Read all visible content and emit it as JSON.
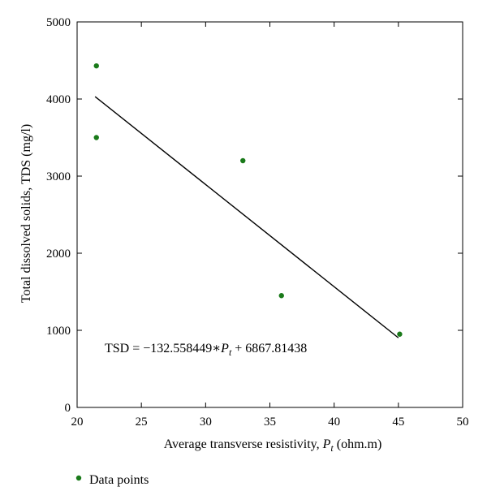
{
  "chart_data": {
    "type": "scatter",
    "xlabel": "Average transverse resistivity, ",
    "xlabel_var": "P",
    "xlabel_sub": "t",
    "xlabel_unit": " (ohm.m)",
    "ylabel": "Total dissolved solids, TDS (mg/l)",
    "xlim": [
      20,
      50
    ],
    "ylim": [
      0,
      5000
    ],
    "x_ticks": [
      20,
      25,
      30,
      35,
      40,
      45,
      50
    ],
    "y_ticks": [
      0,
      1000,
      2000,
      3000,
      4000,
      5000
    ],
    "series": [
      {
        "name": "Data points",
        "color": "#1a7a1a",
        "points": [
          {
            "x": 21.5,
            "y": 4430
          },
          {
            "x": 21.5,
            "y": 3500
          },
          {
            "x": 32.9,
            "y": 3200
          },
          {
            "x": 35.9,
            "y": 1450
          },
          {
            "x": 45.1,
            "y": 950
          }
        ]
      }
    ],
    "fit_line": {
      "slope": -132.558449,
      "intercept": 6867.81438,
      "x_start": 21.4,
      "x_end": 45.0,
      "color": "#000000"
    },
    "equation": {
      "prefix": "TSD = −132.558449∗",
      "var": "P",
      "sub": "t",
      "suffix": " + 6867.81438"
    },
    "legend": {
      "label": "Data points",
      "position": "bottom-left"
    }
  }
}
